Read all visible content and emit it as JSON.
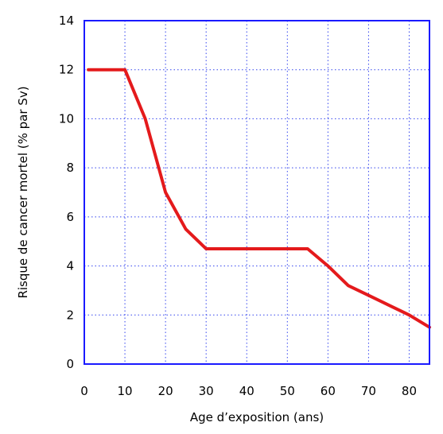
{
  "chart_data": {
    "type": "line",
    "title": "",
    "xlabel": "Age d’exposition (ans)",
    "ylabel": "Risque de cancer mortel (% par Sv)",
    "xlim": [
      0,
      85
    ],
    "ylim": [
      0,
      14
    ],
    "xticks": [
      0,
      10,
      20,
      30,
      40,
      50,
      60,
      70,
      80
    ],
    "yticks": [
      0,
      2,
      4,
      6,
      8,
      10,
      12,
      14
    ],
    "grid": true,
    "series": [
      {
        "color": "#e41a1c",
        "points": [
          [
            1,
            12
          ],
          [
            10,
            12
          ],
          [
            15,
            10
          ],
          [
            20,
            7
          ],
          [
            25,
            5.5
          ],
          [
            30,
            4.7
          ],
          [
            55,
            4.7
          ],
          [
            60,
            4.0
          ],
          [
            65,
            3.2
          ],
          [
            70,
            2.8
          ],
          [
            75,
            2.4
          ],
          [
            80,
            2.0
          ],
          [
            85,
            1.5
          ]
        ]
      }
    ],
    "colors": {
      "frame": "#1a1aff",
      "grid": "#3344ee",
      "line": "#e41a1c"
    }
  }
}
